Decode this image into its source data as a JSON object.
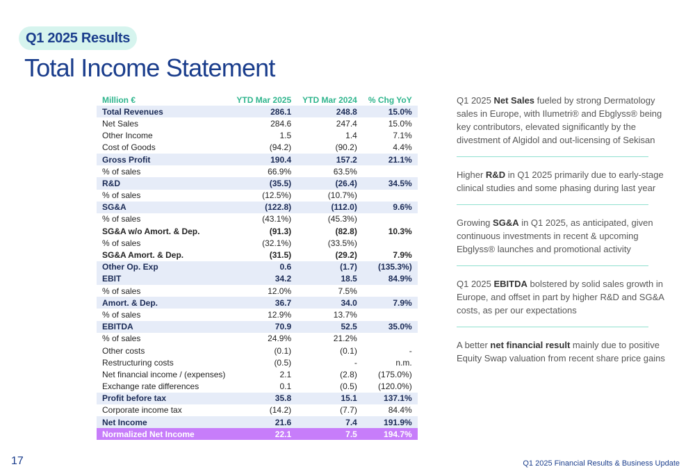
{
  "header": {
    "tag": "Q1 2025 Results",
    "title": "Total Income Statement"
  },
  "table": {
    "columns": [
      "Million €",
      "YTD Mar 2025",
      "YTD Mar 2024",
      "% Chg YoY"
    ],
    "rows": [
      {
        "label": "Total Revenues",
        "v2025": "286.1",
        "v2024": "248.8",
        "chg": "15.0%",
        "style": "hl"
      },
      {
        "label": "Net Sales",
        "v2025": "284.6",
        "v2024": "247.4",
        "chg": "15.0%",
        "style": ""
      },
      {
        "label": "Other Income",
        "v2025": "1.5",
        "v2024": "1.4",
        "chg": "7.1%",
        "style": ""
      },
      {
        "label": "Cost of Goods",
        "v2025": "(94.2)",
        "v2024": "(90.2)",
        "chg": "4.4%",
        "style": ""
      },
      {
        "label": "Gross Profit",
        "v2025": "190.4",
        "v2024": "157.2",
        "chg": "21.1%",
        "style": "hl"
      },
      {
        "label": "% of sales",
        "v2025": "66.9%",
        "v2024": "63.5%",
        "chg": "",
        "style": ""
      },
      {
        "label": "R&D",
        "v2025": "(35.5)",
        "v2024": "(26.4)",
        "chg": "34.5%",
        "style": "hl"
      },
      {
        "label": "% of sales",
        "v2025": "(12.5%)",
        "v2024": "(10.7%)",
        "chg": "",
        "style": ""
      },
      {
        "label": "SG&A",
        "v2025": "(122.8)",
        "v2024": "(112.0)",
        "chg": "9.6%",
        "style": "hl"
      },
      {
        "label": "% of sales",
        "v2025": "(43.1%)",
        "v2024": "(45.3%)",
        "chg": "",
        "style": ""
      },
      {
        "label": "SG&A w/o Amort. & Dep.",
        "v2025": "(91.3)",
        "v2024": "(82.8)",
        "chg": "10.3%",
        "style": "bold"
      },
      {
        "label": "% of sales",
        "v2025": "(32.1%)",
        "v2024": "(33.5%)",
        "chg": "",
        "style": ""
      },
      {
        "label": "SG&A Amort. & Dep.",
        "v2025": "(31.5)",
        "v2024": "(29.2)",
        "chg": "7.9%",
        "style": "bold"
      },
      {
        "label": "Other Op. Exp",
        "v2025": "0.6",
        "v2024": "(1.7)",
        "chg": "(135.3%)",
        "style": "hl"
      },
      {
        "label": "EBIT",
        "v2025": "34.2",
        "v2024": "18.5",
        "chg": "84.9%",
        "style": "hl"
      },
      {
        "label": "% of sales",
        "v2025": "12.0%",
        "v2024": "7.5%",
        "chg": "",
        "style": ""
      },
      {
        "label": "Amort. & Dep.",
        "v2025": "36.7",
        "v2024": "34.0",
        "chg": "7.9%",
        "style": "hl"
      },
      {
        "label": "% of sales",
        "v2025": "12.9%",
        "v2024": "13.7%",
        "chg": "",
        "style": ""
      },
      {
        "label": "EBITDA",
        "v2025": "70.9",
        "v2024": "52.5",
        "chg": "35.0%",
        "style": "hl"
      },
      {
        "label": "% of sales",
        "v2025": "24.9%",
        "v2024": "21.2%",
        "chg": "",
        "style": ""
      },
      {
        "label": "Other costs",
        "v2025": "(0.1)",
        "v2024": "(0.1)",
        "chg": "-",
        "style": ""
      },
      {
        "label": "Restructuring costs",
        "v2025": "(0.5)",
        "v2024": "-",
        "chg": "n.m.",
        "style": ""
      },
      {
        "label": "Net financial income / (expenses)",
        "v2025": "2.1",
        "v2024": "(2.8)",
        "chg": "(175.0%)",
        "style": ""
      },
      {
        "label": "Exchange rate differences",
        "v2025": "0.1",
        "v2024": "(0.5)",
        "chg": "(120.0%)",
        "style": ""
      },
      {
        "label": "Profit before tax",
        "v2025": "35.8",
        "v2024": "15.1",
        "chg": "137.1%",
        "style": "hl"
      },
      {
        "label": "Corporate income tax",
        "v2025": "(14.2)",
        "v2024": "(7.7)",
        "chg": "84.4%",
        "style": ""
      },
      {
        "label": "Net Income",
        "v2025": "21.6",
        "v2024": "7.4",
        "chg": "191.9%",
        "style": "hl"
      },
      {
        "label": "Normalized Net Income",
        "v2025": "22.1",
        "v2024": "7.5",
        "chg": "194.7%",
        "style": "pu"
      }
    ]
  },
  "notes": [
    {
      "pre": "Q1 2025 ",
      "bold": "Net Sales",
      "post": " fueled by strong Dermatology sales in Europe, with Ilumetri® and Ebglyss® being key contributors, elevated significantly by the divestment of Algidol and out-licensing of Sekisan"
    },
    {
      "pre": "Higher ",
      "bold": "R&D",
      "post": " in Q1 2025 primarily due to early-stage clinical studies and some phasing during last year"
    },
    {
      "pre": "Growing ",
      "bold": "SG&A",
      "post": " in Q1 2025, as anticipated, given continuous investments in recent & upcoming Ebglyss® launches and promotional activity"
    },
    {
      "pre": "Q1 2025 ",
      "bold": "EBITDA",
      "post": " bolstered by solid sales growth in Europe, and offset in part by higher R&D and SG&A costs, as per our expectations"
    },
    {
      "pre": "A better ",
      "bold": "net financial result",
      "post": " mainly due to positive Equity Swap valuation from recent share price gains"
    }
  ],
  "footer": {
    "page_number": "17",
    "text": "Q1 2025 Financial Results & Business Update"
  }
}
